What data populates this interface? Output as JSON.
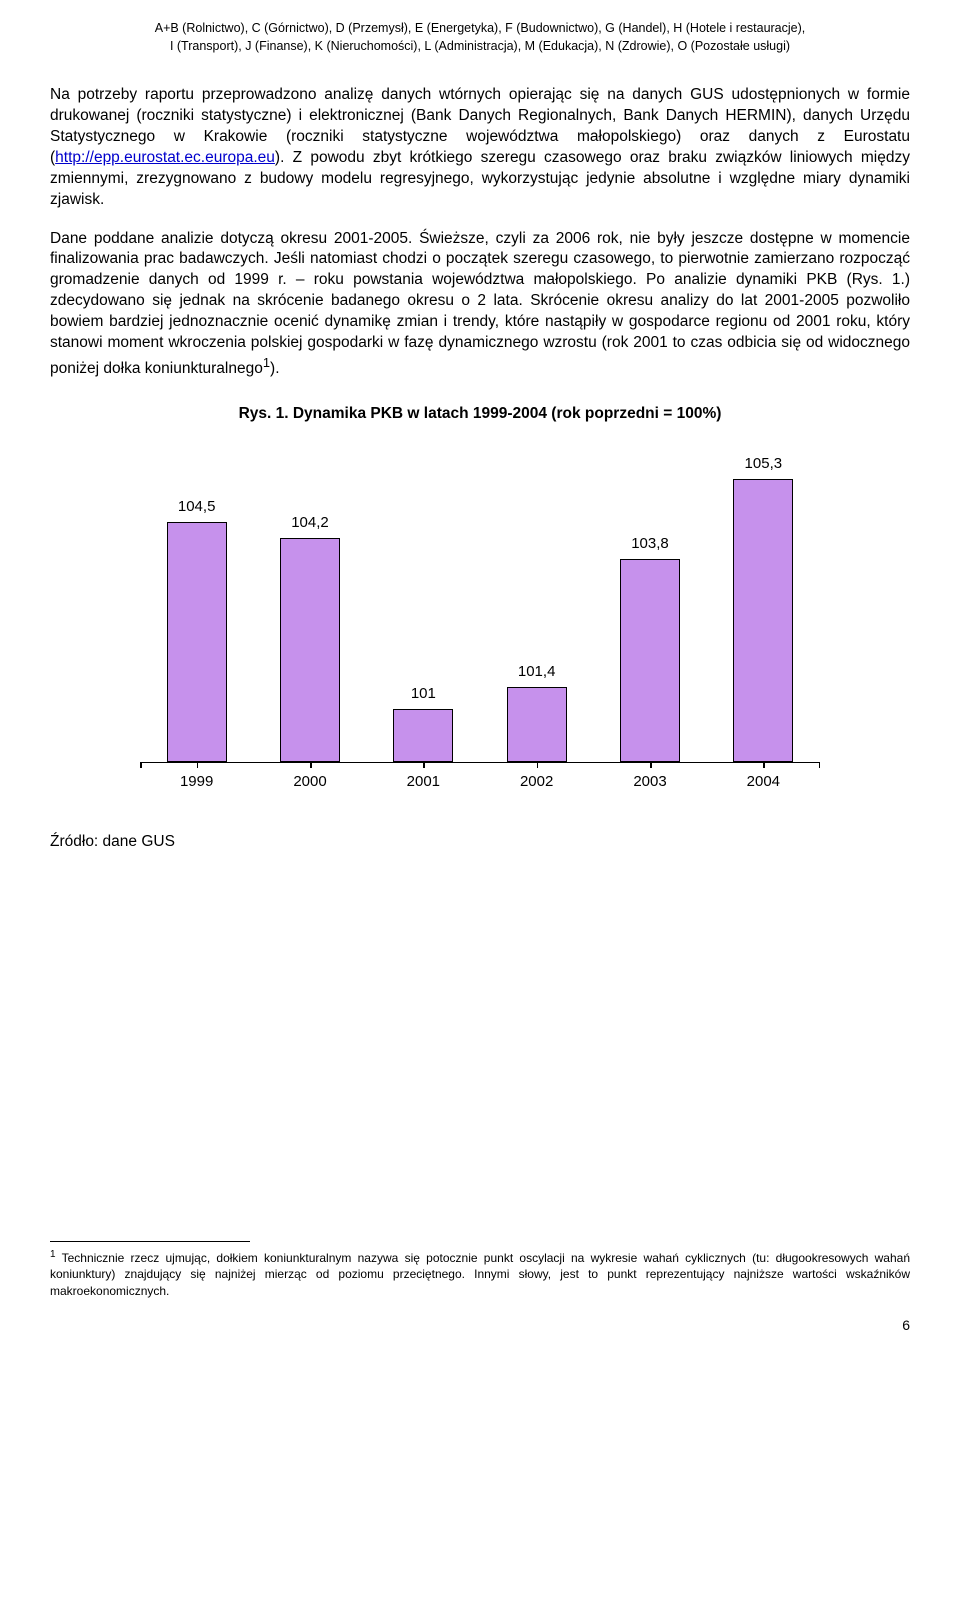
{
  "header": {
    "line1": "A+B (Rolnictwo), C (Górnictwo), D (Przemysł), E (Energetyka), F (Budownictwo), G (Handel), H (Hotele i restauracje),",
    "line2": "I (Transport), J (Finanse), K (Nieruchomości), L (Administracja), M (Edukacja), N (Zdrowie), O (Pozostałe usługi)"
  },
  "para1_a": "Na potrzeby raportu przeprowadzono analizę danych wtórnych opierając się na danych GUS udostępnionych w formie drukowanej (roczniki statystyczne) i elektronicznej (Bank Danych Regionalnych, Bank Danych HERMIN), danych Urzędu Statystycznego w Krakowie (roczniki statystyczne województwa małopolskiego) oraz danych z Eurostatu (",
  "para1_link": "http://epp.eurostat.ec.europa.eu",
  "para1_b": "). Z powodu zbyt krótkiego szeregu czasowego oraz braku związków liniowych między zmiennymi, zrezygnowano z budowy modelu regresyjnego, wykorzystując jedynie absolutne i względne miary dynamiki zjawisk.",
  "para2": "Dane poddane analizie dotyczą okresu 2001-2005. Świeższe, czyli za 2006 rok, nie były jeszcze dostępne w momencie finalizowania prac badawczych. Jeśli natomiast chodzi o początek szeregu czasowego, to pierwotnie zamierzano rozpocząć gromadzenie danych od 1999 r. – roku powstania województwa małopolskiego. Po analizie dynamiki PKB (Rys. 1.) zdecydowano się jednak na skrócenie badanego okresu o 2 lata. Skrócenie okresu analizy do lat 2001-2005 pozwoliło bowiem bardziej jednoznacznie ocenić dynamikę zmian i trendy, które nastąpiły w gospodarce regionu od 2001 roku, który stanowi moment wkroczenia polskiej gospodarki w fazę dynamicznego wzrostu (rok 2001 to czas odbicia się od widocznego poniżej dołka koniunkturalnego",
  "para2_sup": "1",
  "para2_end": ").",
  "chart": {
    "title": "Rys. 1. Dynamika PKB w latach 1999-2004 (rok poprzedni = 100%)",
    "categories": [
      "1999",
      "2000",
      "2001",
      "2002",
      "2003",
      "2004"
    ],
    "values": [
      104.5,
      104.2,
      101,
      101.4,
      103.8,
      105.3
    ],
    "value_labels": [
      "104,5",
      "104,2",
      "101",
      "101,4",
      "103,8",
      "105,3"
    ],
    "bar_fill": "#c691ec",
    "bar_border": "#000000",
    "ymin": 100.0,
    "ymax": 106.0,
    "source": "Źródło: dane GUS"
  },
  "footnote": {
    "num": "1",
    "text": " Technicznie rzecz ujmując, dołkiem koniunkturalnym nazywa się potocznie punkt oscylacji na wykresie wahań cyklicznych (tu: długookresowych wahań koniunktury) znajdujący się najniżej mierząc od poziomu przeciętnego. Innymi słowy, jest to punkt reprezentujący najniższe wartości wskaźników makroekonomicznych."
  },
  "page_number": "6"
}
